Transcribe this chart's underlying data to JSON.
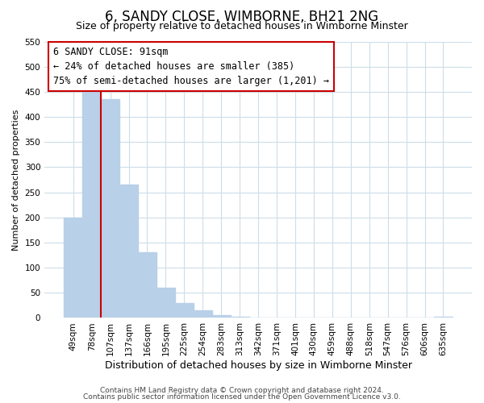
{
  "title": "6, SANDY CLOSE, WIMBORNE, BH21 2NG",
  "subtitle": "Size of property relative to detached houses in Wimborne Minster",
  "xlabel": "Distribution of detached houses by size in Wimborne Minster",
  "ylabel": "Number of detached properties",
  "bar_labels": [
    "49sqm",
    "78sqm",
    "107sqm",
    "137sqm",
    "166sqm",
    "195sqm",
    "225sqm",
    "254sqm",
    "283sqm",
    "313sqm",
    "342sqm",
    "371sqm",
    "401sqm",
    "430sqm",
    "459sqm",
    "488sqm",
    "518sqm",
    "547sqm",
    "576sqm",
    "606sqm",
    "635sqm"
  ],
  "bar_values": [
    200,
    450,
    435,
    265,
    130,
    60,
    30,
    15,
    5,
    2,
    1,
    1,
    1,
    0,
    0,
    0,
    0,
    0,
    0,
    0,
    3
  ],
  "bar_color": "#b8d0e8",
  "bar_edge_color": "#b8d0e8",
  "property_line_color": "#cc0000",
  "property_line_x": 1.5,
  "annotation_text": "6 SANDY CLOSE: 91sqm\n← 24% of detached houses are smaller (385)\n75% of semi-detached houses are larger (1,201) →",
  "annotation_box_facecolor": "#ffffff",
  "annotation_box_edgecolor": "#cc0000",
  "ylim": [
    0,
    550
  ],
  "yticks": [
    0,
    50,
    100,
    150,
    200,
    250,
    300,
    350,
    400,
    450,
    500,
    550
  ],
  "footer1": "Contains HM Land Registry data © Crown copyright and database right 2024.",
  "footer2": "Contains public sector information licensed under the Open Government Licence v3.0.",
  "background_color": "#ffffff",
  "grid_color": "#ccdde8",
  "title_fontsize": 12,
  "subtitle_fontsize": 9,
  "xlabel_fontsize": 9,
  "ylabel_fontsize": 8,
  "tick_fontsize": 7.5,
  "annotation_fontsize": 8.5,
  "footer_fontsize": 6.5
}
